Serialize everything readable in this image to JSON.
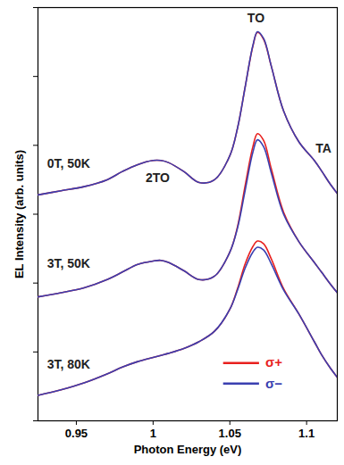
{
  "chart_data": {
    "type": "line",
    "xlabel": "Photon Energy (eV)",
    "ylabel": "EL Intensity (arb. units)",
    "x": [
      0.925,
      0.94,
      0.955,
      0.97,
      0.98,
      0.99,
      1.0,
      1.005,
      1.01,
      1.02,
      1.03,
      1.04,
      1.05,
      1.055,
      1.06,
      1.065,
      1.068,
      1.072,
      1.077,
      1.085,
      1.095,
      1.105,
      1.11,
      1.115,
      1.12
    ],
    "series": [
      {
        "name": "σ+",
        "color": "#e8201e",
        "values": [
          3.28,
          3.34,
          3.4,
          3.5,
          3.62,
          3.72,
          3.78,
          3.78,
          3.75,
          3.62,
          3.46,
          3.5,
          3.85,
          4.25,
          4.85,
          5.44,
          5.64,
          5.54,
          5.15,
          4.5,
          4.05,
          3.78,
          3.62,
          3.45,
          3.3
        ]
      },
      {
        "name": "σ−",
        "color": "#3a3fb0",
        "values": [
          3.28,
          3.34,
          3.4,
          3.5,
          3.62,
          3.72,
          3.78,
          3.78,
          3.75,
          3.62,
          3.46,
          3.5,
          3.85,
          4.25,
          4.85,
          5.45,
          5.65,
          5.55,
          5.15,
          4.5,
          4.05,
          3.78,
          3.62,
          3.45,
          3.3
        ]
      },
      {
        "name": "σ+",
        "color": "#e8201e",
        "values": [
          1.8,
          1.86,
          1.93,
          2.05,
          2.16,
          2.27,
          2.32,
          2.33,
          2.3,
          2.18,
          2.05,
          2.1,
          2.45,
          2.82,
          3.42,
          3.98,
          4.17,
          4.07,
          3.66,
          3.03,
          2.6,
          2.3,
          2.15,
          2.0,
          1.86
        ]
      },
      {
        "name": "σ−",
        "color": "#3a3fb0",
        "values": [
          1.8,
          1.86,
          1.93,
          2.05,
          2.16,
          2.27,
          2.32,
          2.33,
          2.3,
          2.18,
          2.05,
          2.1,
          2.45,
          2.8,
          3.35,
          3.9,
          4.08,
          3.98,
          3.6,
          3.0,
          2.6,
          2.3,
          2.15,
          2.0,
          1.86
        ]
      },
      {
        "name": "σ+",
        "color": "#e8201e",
        "values": [
          0.37,
          0.45,
          0.55,
          0.68,
          0.78,
          0.86,
          0.92,
          0.95,
          0.98,
          1.05,
          1.15,
          1.3,
          1.62,
          1.92,
          2.28,
          2.53,
          2.61,
          2.57,
          2.35,
          1.92,
          1.55,
          1.15,
          0.95,
          0.78,
          0.63
        ]
      },
      {
        "name": "σ−",
        "color": "#3a3fb0",
        "values": [
          0.37,
          0.45,
          0.55,
          0.68,
          0.78,
          0.86,
          0.92,
          0.95,
          0.98,
          1.05,
          1.15,
          1.3,
          1.62,
          1.9,
          2.22,
          2.45,
          2.52,
          2.48,
          2.28,
          1.9,
          1.55,
          1.15,
          0.95,
          0.78,
          0.63
        ]
      }
    ],
    "annotations": [
      {
        "text": "TO",
        "x": 1.067,
        "y": 5.84
      },
      {
        "text": "2TO",
        "x": 1.003,
        "y": 3.52
      },
      {
        "text": "TA",
        "x": 1.111,
        "y": 3.95
      },
      {
        "text": "0T, 50K",
        "x": 0.945,
        "y": 3.73
      },
      {
        "text": "3T, 50K",
        "x": 0.945,
        "y": 2.28
      },
      {
        "text": "3T, 80K",
        "x": 0.945,
        "y": 0.82
      }
    ],
    "xlim": [
      0.925,
      1.12
    ],
    "xticks": [
      0.95,
      1,
      1.05,
      1.1
    ],
    "ylim": [
      0,
      6
    ],
    "yticks": [
      0,
      1,
      2,
      3,
      4,
      5,
      6
    ],
    "tick_labels": "x",
    "grid": false,
    "legend": "lower right"
  }
}
